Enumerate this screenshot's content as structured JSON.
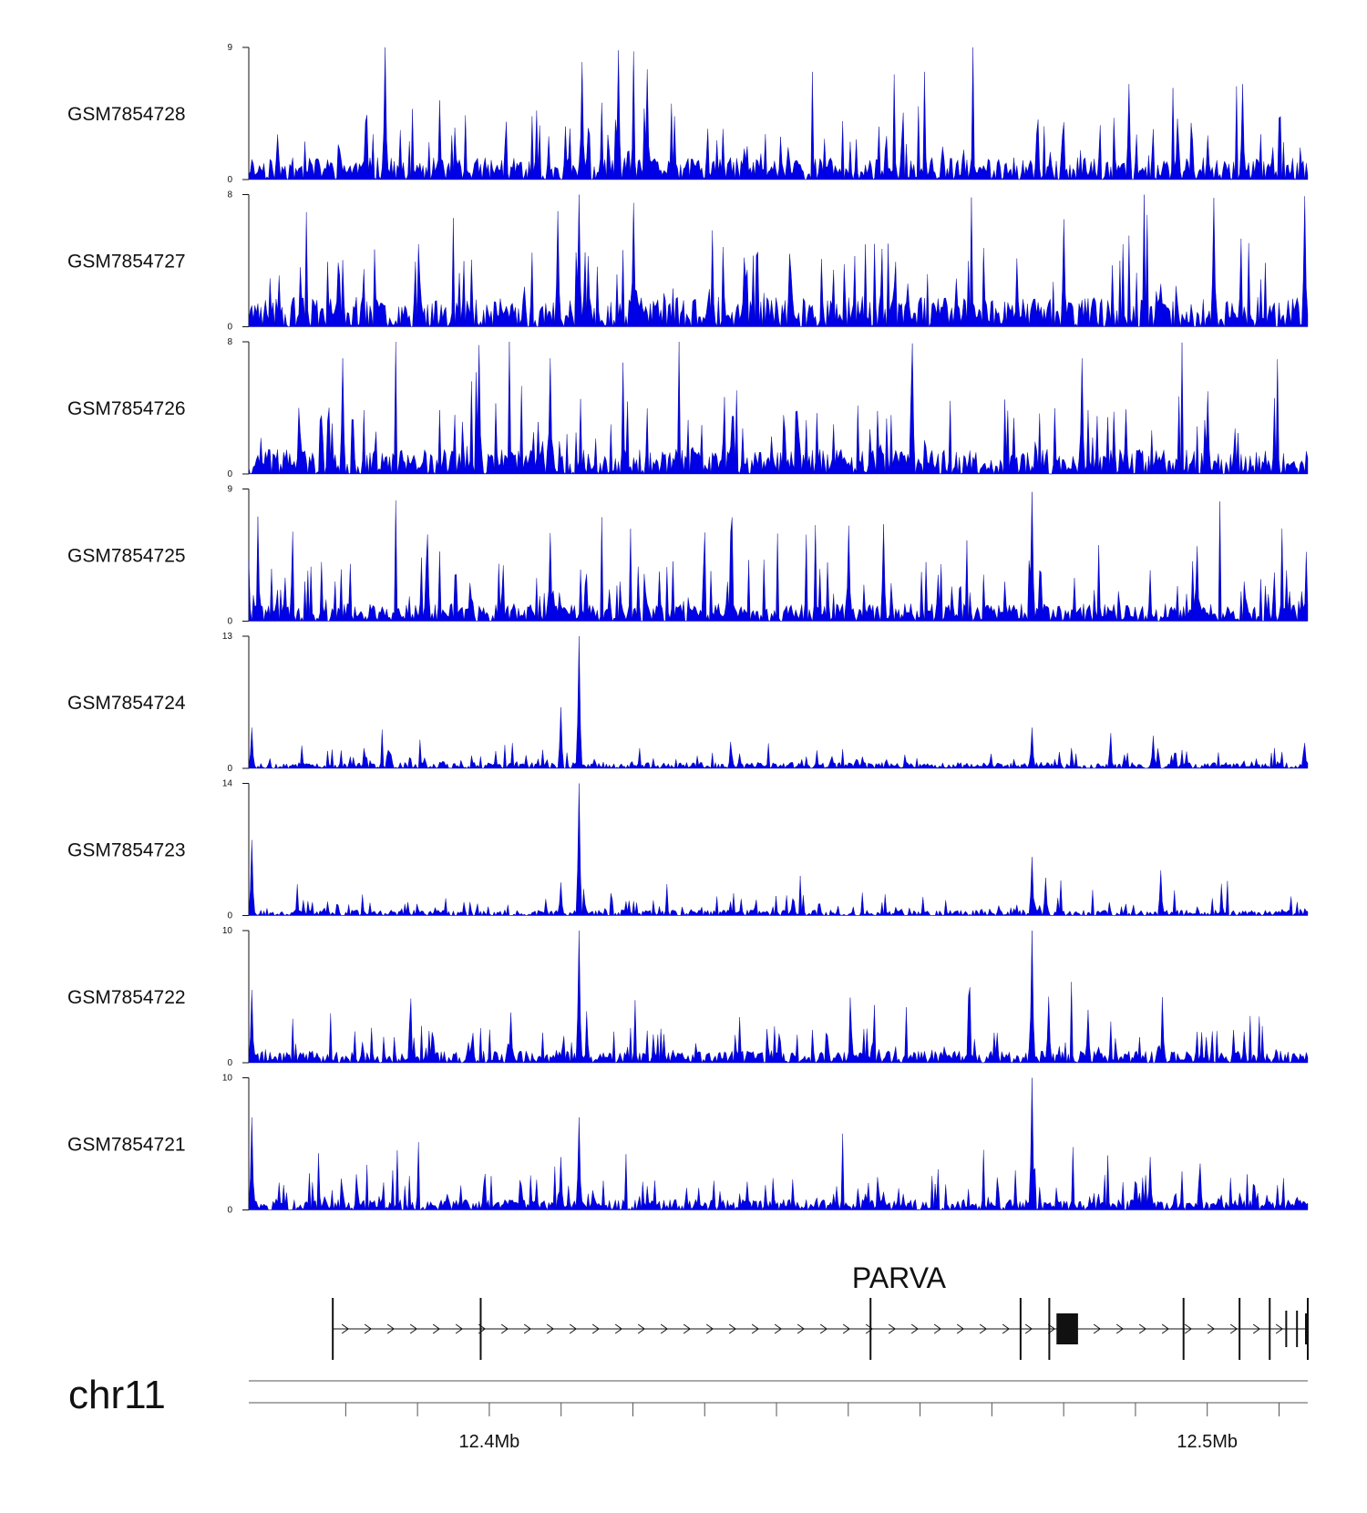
{
  "chart_data": {
    "type": "area",
    "title": "",
    "chromosome": "chr11",
    "color_signal": "#0000e6",
    "color_axis": "#111111",
    "x_range_mb": [
      12.3665,
      12.514
    ],
    "x_ticks_mb": [
      12.38,
      12.39,
      12.4,
      12.41,
      12.42,
      12.43,
      12.44,
      12.45,
      12.46,
      12.47,
      12.48,
      12.49,
      12.5,
      12.51
    ],
    "x_tick_labels": [
      {
        "mb": 12.4,
        "label": "12.4Mb"
      },
      {
        "mb": 12.5,
        "label": "12.5Mb"
      }
    ],
    "tracks": [
      {
        "name": "GSM7854728",
        "ymin": "0",
        "ymax": "9",
        "max": 9,
        "base": 1.5,
        "noise": 1.6,
        "seed": 11,
        "peaks": [
          [
            12.3855,
            9
          ],
          [
            12.413,
            8
          ],
          [
            12.418,
            8.8
          ],
          [
            12.422,
            7.5
          ],
          [
            12.489,
            6.5
          ],
          [
            12.505,
            6.5
          ]
        ]
      },
      {
        "name": "GSM7854727",
        "ymin": "0",
        "ymax": "8",
        "max": 8,
        "base": 1.8,
        "noise": 1.8,
        "seed": 23,
        "peaks": [
          [
            12.4095,
            7
          ],
          [
            12.4125,
            8
          ],
          [
            12.42,
            7.5
          ],
          [
            12.48,
            6.5
          ],
          [
            12.501,
            7.8
          ],
          [
            12.5135,
            7.9
          ]
        ]
      },
      {
        "name": "GSM7854726",
        "ymin": "0",
        "ymax": "8",
        "max": 8,
        "base": 1.5,
        "noise": 1.7,
        "seed": 37,
        "peaks": [
          [
            12.3795,
            7
          ],
          [
            12.3985,
            7.8
          ],
          [
            12.4085,
            7
          ],
          [
            12.459,
            7.9
          ],
          [
            12.4825,
            7
          ],
          [
            12.5,
            5
          ]
        ]
      },
      {
        "name": "GSM7854725",
        "ymin": "0",
        "ymax": "9",
        "max": 9,
        "base": 1.2,
        "noise": 1.5,
        "seed": 41,
        "peaks": [
          [
            12.3915,
            5.9
          ],
          [
            12.4085,
            6
          ],
          [
            12.45,
            6.5
          ],
          [
            12.455,
            6.6
          ],
          [
            12.4755,
            8.8
          ],
          [
            12.4985,
            5.1
          ]
        ]
      },
      {
        "name": "GSM7854724",
        "ymin": "0",
        "ymax": "13",
        "max": 13,
        "base": 0.6,
        "noise": 0.7,
        "seed": 53,
        "peaks": [
          [
            12.367,
            4
          ],
          [
            12.41,
            6
          ],
          [
            12.4125,
            13
          ],
          [
            12.4755,
            4
          ],
          [
            12.4925,
            3.2
          ],
          [
            12.5135,
            2.5
          ]
        ]
      },
      {
        "name": "GSM7854723",
        "ymin": "0",
        "ymax": "14",
        "max": 14,
        "base": 0.6,
        "noise": 0.8,
        "seed": 67,
        "peaks": [
          [
            12.367,
            8
          ],
          [
            12.41,
            3.5
          ],
          [
            12.4125,
            14
          ],
          [
            12.4755,
            6.2
          ],
          [
            12.4775,
            4
          ],
          [
            12.4935,
            4.8
          ]
        ]
      },
      {
        "name": "GSM7854722",
        "ymin": "0",
        "ymax": "10",
        "max": 10,
        "base": 0.9,
        "noise": 1.1,
        "seed": 79,
        "peaks": [
          [
            12.367,
            5.5
          ],
          [
            12.403,
            3.8
          ],
          [
            12.4125,
            10
          ],
          [
            12.4755,
            10
          ],
          [
            12.478,
            5
          ],
          [
            12.4835,
            4
          ]
        ]
      },
      {
        "name": "GSM7854721",
        "ymin": "0",
        "ymax": "10",
        "max": 10,
        "base": 0.8,
        "noise": 1.0,
        "seed": 97,
        "peaks": [
          [
            12.367,
            7
          ],
          [
            12.41,
            4
          ],
          [
            12.4125,
            7
          ],
          [
            12.4755,
            10
          ],
          [
            12.492,
            4
          ],
          [
            12.499,
            3.5
          ]
        ]
      }
    ],
    "gene": {
      "name": "PARVA",
      "strand": "+",
      "start_mb": 12.3782,
      "end_mb": 12.514,
      "exons_mb": [
        12.3782,
        12.3988,
        12.4531,
        12.474,
        12.478,
        12.4967,
        12.5045,
        12.5087,
        12.511,
        12.5125,
        12.514
      ],
      "utr_block_mb": [
        12.479,
        12.482
      ]
    }
  }
}
